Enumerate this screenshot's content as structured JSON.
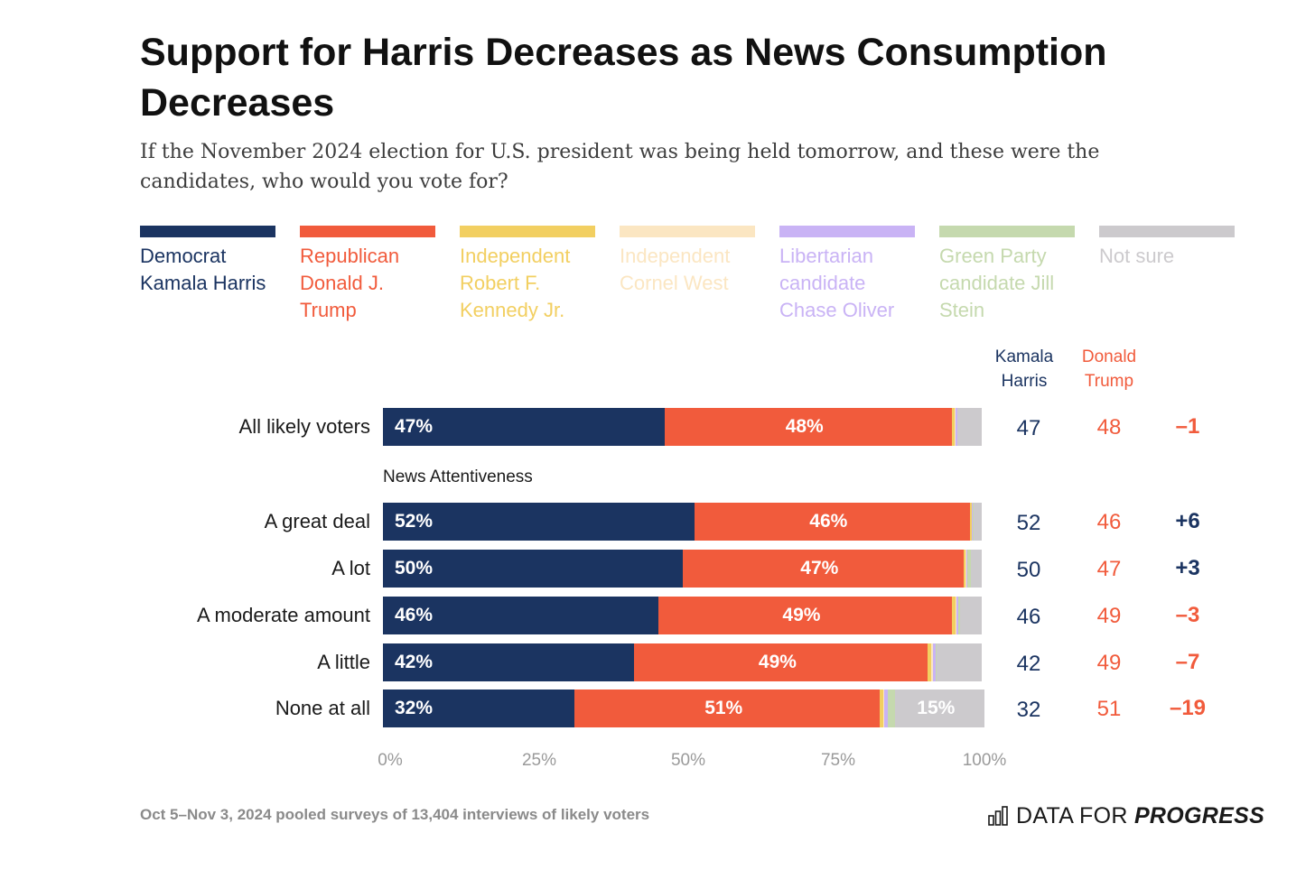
{
  "title": "Support for Harris Decreases as News Consumption Decreases",
  "subtitle": "If the November 2024 election for U.S. president was being held tomorrow, and these were the candidates, who would you vote for?",
  "legend": [
    {
      "label": "Democrat Kamala Harris",
      "color": "#1b3461"
    },
    {
      "label": "Republican Donald J. Trump",
      "color": "#f15b3c"
    },
    {
      "label": "Independent Robert F. Kennedy Jr.",
      "color": "#f2cf61"
    },
    {
      "label": "Independent Cornel West",
      "color": "#fbe6c2"
    },
    {
      "label": "Libertarian candidate Chase Oliver",
      "color": "#c9b3f5"
    },
    {
      "label": "Green Party candidate Jill Stein",
      "color": "#c5d9ae"
    },
    {
      "label": "Not sure",
      "color": "#cccacd"
    }
  ],
  "columns": {
    "harris": "Kamala Harris",
    "trump": "Donald Trump"
  },
  "section_label": "News Attentiveness",
  "chart_data": {
    "type": "bar",
    "orientation": "horizontal",
    "stacked": true,
    "xlim": [
      0,
      100
    ],
    "ticks": [
      "0%",
      "25%",
      "50%",
      "75%",
      "100%"
    ],
    "categories": [
      "All likely voters",
      "A great deal",
      "A lot",
      "A moderate amount",
      "A little",
      "None at all"
    ],
    "series": [
      {
        "name": "Democrat Kamala Harris",
        "values": [
          47,
          52,
          50,
          46,
          42,
          32
        ],
        "labels": [
          "47%",
          "52%",
          "50%",
          "46%",
          "42%",
          "32%"
        ]
      },
      {
        "name": "Republican Donald J. Trump",
        "values": [
          48,
          46,
          47,
          49,
          49,
          51
        ],
        "labels": [
          "48%",
          "46%",
          "47%",
          "49%",
          "49%",
          "51%"
        ]
      },
      {
        "name": "Independent Robert F. Kennedy Jr.",
        "values": [
          0.5,
          0.3,
          0.3,
          0.6,
          0.6,
          0.5
        ],
        "labels": [
          "",
          "",
          "",
          "",
          "",
          ""
        ]
      },
      {
        "name": "Independent Cornel West",
        "values": [
          0.2,
          0.1,
          0.1,
          0.2,
          0.3,
          0.2
        ],
        "labels": [
          "",
          "",
          "",
          "",
          "",
          ""
        ]
      },
      {
        "name": "Libertarian candidate Chase Oliver",
        "values": [
          0.2,
          0.1,
          0.2,
          0.3,
          0.4,
          0.6
        ],
        "labels": [
          "",
          "",
          "",
          "",
          "",
          ""
        ]
      },
      {
        "name": "Green Party candidate Jill Stein",
        "values": [
          0.1,
          0.1,
          0.6,
          0.3,
          0.2,
          1.2
        ],
        "labels": [
          "",
          "",
          "",
          "",
          "",
          ""
        ]
      },
      {
        "name": "Not sure",
        "values": [
          4,
          1.4,
          1.8,
          3.6,
          7.5,
          15
        ],
        "labels": [
          "",
          "",
          "",
          "",
          "",
          "15%"
        ]
      }
    ],
    "harris": [
      "47",
      "52",
      "50",
      "46",
      "42",
      "32"
    ],
    "trump": [
      "48",
      "46",
      "47",
      "49",
      "49",
      "51"
    ],
    "margin": [
      "–1",
      "+6",
      "+3",
      "–3",
      "–7",
      "–19"
    ]
  },
  "footer": "Oct 5–Nov 3, 2024 pooled surveys of 13,404 interviews of likely voters",
  "brand": {
    "prefix": "DATA FOR",
    "bold": "PROGRESS"
  },
  "colors": {
    "dem": "#1b3461",
    "rep": "#f15b3c",
    "not_sure_text": "#b8b8b8"
  }
}
